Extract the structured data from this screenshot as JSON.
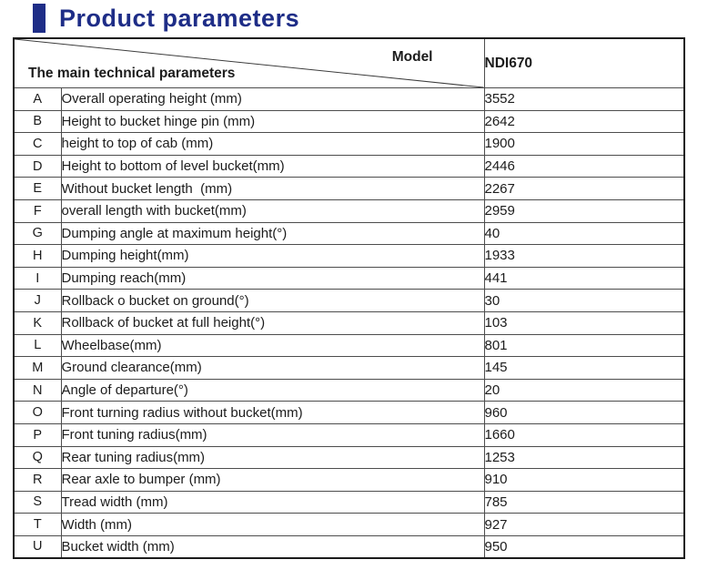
{
  "page": {
    "title": "Product parameters",
    "accent_color": "#1e2d87"
  },
  "table": {
    "corner": {
      "top_label": "Model",
      "bottom_label": "The main technical parameters"
    },
    "model_header": "NDI670",
    "rows": [
      {
        "letter": "A",
        "parameter": "Overall operating height (mm)",
        "value": "3552"
      },
      {
        "letter": "B",
        "parameter": "Height to bucket hinge pin (mm)",
        "value": "2642"
      },
      {
        "letter": "C",
        "parameter": "height to top of cab (mm)",
        "value": "1900"
      },
      {
        "letter": "D",
        "parameter": "Height to bottom of level bucket(mm)",
        "value": "2446"
      },
      {
        "letter": "E",
        "parameter": "Without bucket length  (mm)",
        "value": "2267"
      },
      {
        "letter": "F",
        "parameter": "overall length with bucket(mm)",
        "value": "2959"
      },
      {
        "letter": "G",
        "parameter": "Dumping angle at maximum height(°)",
        "value": "40"
      },
      {
        "letter": "H",
        "parameter": "Dumping height(mm)",
        "value": "1933"
      },
      {
        "letter": "I",
        "parameter": "Dumping reach(mm)",
        "value": "441"
      },
      {
        "letter": "J",
        "parameter": "Rollback o bucket on ground(°)",
        "value": "30"
      },
      {
        "letter": "K",
        "parameter": "Rollback of bucket at full height(°)",
        "value": "103"
      },
      {
        "letter": "L",
        "parameter": "Wheelbase(mm)",
        "value": "801"
      },
      {
        "letter": "M",
        "parameter": "Ground clearance(mm)",
        "value": "145"
      },
      {
        "letter": "N",
        "parameter": "Angle of departure(°)",
        "value": "20"
      },
      {
        "letter": "O",
        "parameter": "Front turning radius without bucket(mm)",
        "value": "960"
      },
      {
        "letter": "P",
        "parameter": "Front tuning radius(mm)",
        "value": "1660"
      },
      {
        "letter": "Q",
        "parameter": "Rear tuning radius(mm)",
        "value": "1253"
      },
      {
        "letter": "R",
        "parameter": "Rear axle to bumper (mm)",
        "value": "910"
      },
      {
        "letter": "S",
        "parameter": "Tread width (mm)",
        "value": "785"
      },
      {
        "letter": "T",
        "parameter": "Width (mm)",
        "value": "927"
      },
      {
        "letter": "U",
        "parameter": "Bucket width (mm)",
        "value": "950"
      }
    ]
  }
}
